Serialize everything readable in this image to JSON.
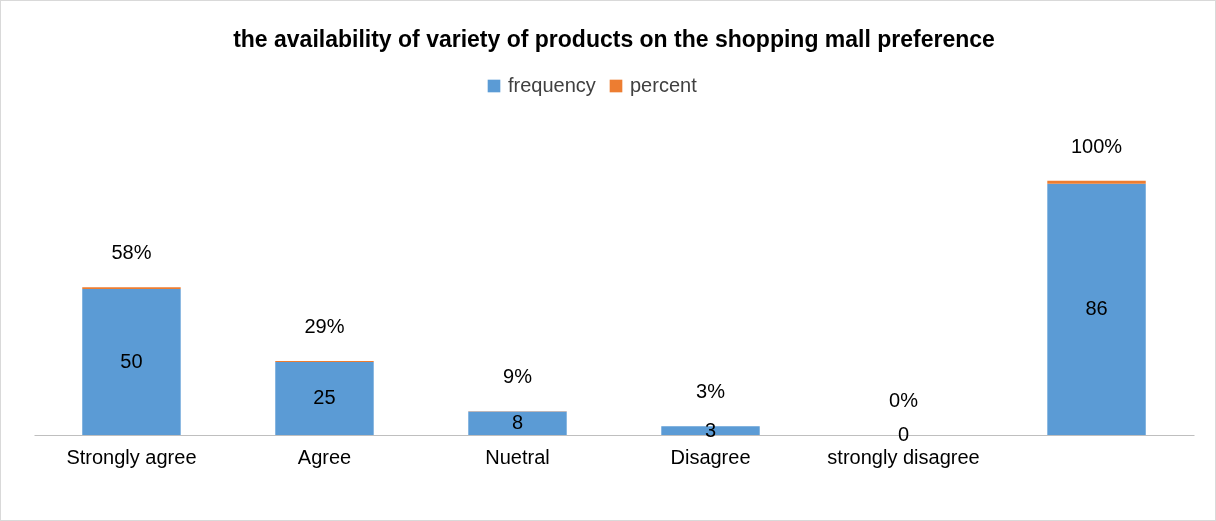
{
  "chart_data": {
    "type": "bar",
    "title": "the availability of variety of products on the shopping mall preference",
    "categories": [
      "Strongly agree",
      "Agree",
      "Nuetral",
      "Disagree",
      "strongly disagree",
      null
    ],
    "stacked": true,
    "legend": "top",
    "grid": false,
    "series": [
      {
        "name": "frequency",
        "color": "#5b9bd5",
        "values": [
          50,
          25,
          8,
          3,
          0,
          86
        ],
        "value_labels": [
          "50",
          "25",
          "8",
          "3",
          "0",
          "86"
        ]
      },
      {
        "name": "percent",
        "color": "#ed7d31",
        "values": [
          0.58,
          0.29,
          0.09,
          0.03,
          0,
          1
        ],
        "value_labels": [
          "58%",
          "29%",
          "9%",
          "3%",
          "0%",
          "100%"
        ]
      }
    ]
  }
}
